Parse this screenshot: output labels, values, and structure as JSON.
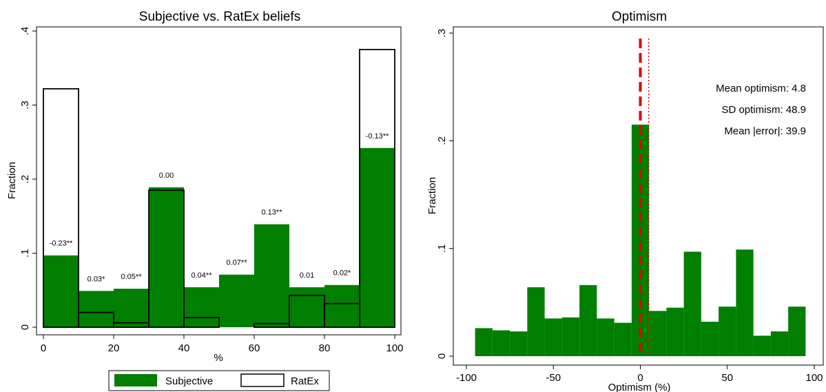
{
  "colors": {
    "subjective": "#007f00",
    "ratex_fill": "#ffffff",
    "outline": "#000000",
    "zero_line": "#e00000"
  },
  "chart_data": [
    {
      "type": "bar",
      "title": "Subjective vs. RatEx beliefs",
      "xlabel": "%",
      "ylabel": "Fraction",
      "xlim": [
        0,
        100
      ],
      "ylim": [
        0,
        0.4
      ],
      "xticks": [
        0,
        20,
        40,
        60,
        80,
        100
      ],
      "xtick_labels": [
        "0",
        "20",
        "40",
        "60",
        "80",
        "100"
      ],
      "yticks": [
        0,
        0.1,
        0.2,
        0.3,
        0.4
      ],
      "ytick_labels": [
        "0",
        ".1",
        ".2",
        ".3",
        ".4"
      ],
      "bin_width": 10,
      "bin_starts": [
        0,
        10,
        20,
        30,
        40,
        50,
        60,
        70,
        80,
        90
      ],
      "series": [
        {
          "name": "Subjective",
          "values": [
            0.097,
            0.049,
            0.052,
            0.189,
            0.054,
            0.071,
            0.139,
            0.054,
            0.057,
            0.242
          ]
        },
        {
          "name": "RatEx",
          "values": [
            0.322,
            0.02,
            0.006,
            0.185,
            0.013,
            0.0,
            0.005,
            0.043,
            0.032,
            0.375
          ]
        }
      ],
      "bar_labels": [
        "-0.23**",
        "0.03*",
        "0.05**",
        "0.00",
        "0.04**",
        "0.07**",
        "0.13**",
        "0.01",
        "0.02*",
        "-0.13**"
      ],
      "legend": {
        "placement": "bottom",
        "items": [
          "Subjective",
          "RatEx"
        ]
      },
      "grid": false
    },
    {
      "type": "bar",
      "title": "Optimism",
      "xlabel": "Optimism (%)",
      "ylabel": "Fraction",
      "xlim": [
        -100,
        100
      ],
      "ylim": [
        0,
        0.3
      ],
      "xticks": [
        -100,
        -50,
        0,
        50,
        100
      ],
      "xtick_labels": [
        "-100",
        "-50",
        "0",
        "50",
        "100"
      ],
      "yticks": [
        0,
        0.1,
        0.2,
        0.3
      ],
      "ytick_labels": [
        "0",
        ".1",
        ".2",
        ".3"
      ],
      "bin_width": 10,
      "bin_starts": [
        -95,
        -85,
        -75,
        -65,
        -55,
        -45,
        -35,
        -25,
        -15,
        -5,
        5,
        15,
        25,
        35,
        45,
        55,
        65,
        75,
        85
      ],
      "series": [
        {
          "name": "Optimism",
          "values": [
            0.026,
            0.024,
            0.023,
            0.064,
            0.035,
            0.036,
            0.066,
            0.035,
            0.031,
            0.215,
            0.042,
            0.045,
            0.097,
            0.032,
            0.046,
            0.099,
            0.019,
            0.023,
            0.046
          ]
        }
      ],
      "reference_lines": {
        "zero_dashed": 0,
        "mean_dotted": 4.8
      },
      "annotations": [
        "Mean optimism:  4.8",
        "SD optimism: 48.9",
        "Mean |error|: 39.9"
      ],
      "grid": false
    }
  ]
}
